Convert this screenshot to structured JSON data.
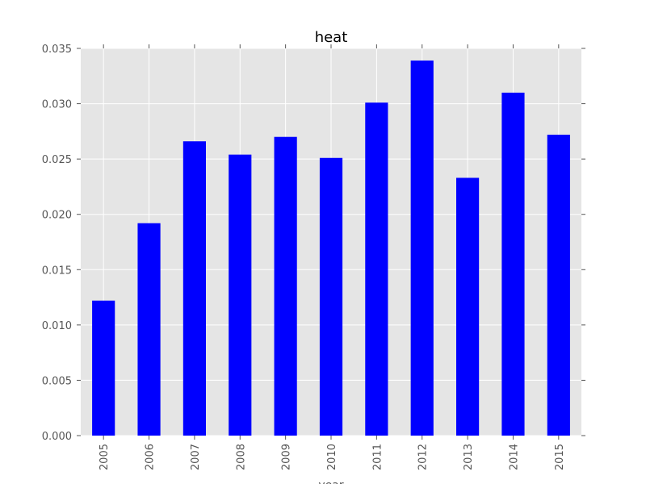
{
  "chart_data": {
    "type": "bar",
    "title": "heat",
    "xlabel": "year",
    "ylabel": "",
    "categories": [
      "2005",
      "2006",
      "2007",
      "2008",
      "2009",
      "2010",
      "2011",
      "2012",
      "2013",
      "2014",
      "2015"
    ],
    "values": [
      0.0122,
      0.0192,
      0.0266,
      0.0254,
      0.027,
      0.0251,
      0.0301,
      0.0339,
      0.0233,
      0.031,
      0.0272
    ],
    "ylim": [
      0,
      0.035
    ],
    "yticks": [
      "0.000",
      "0.005",
      "0.010",
      "0.015",
      "0.020",
      "0.025",
      "0.030",
      "0.035"
    ],
    "ytick_values": [
      0,
      0.005,
      0.01,
      0.015,
      0.02,
      0.025,
      0.03,
      0.035
    ],
    "grid": true,
    "bar_color": "#0000ff",
    "plot_background": "#e5e5e5",
    "grid_color": "#ffffff"
  }
}
